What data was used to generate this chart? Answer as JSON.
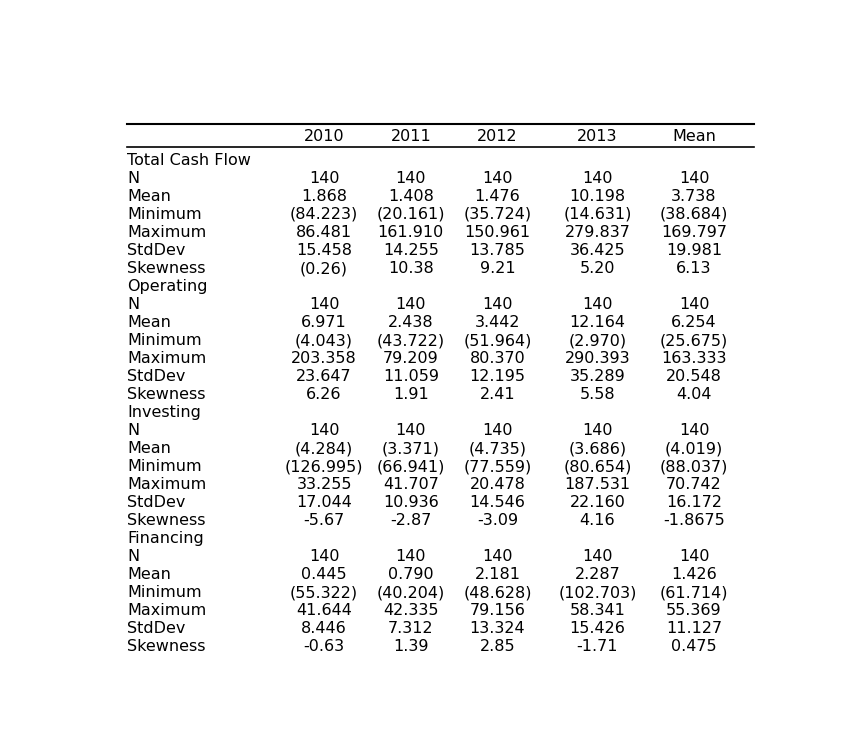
{
  "sections": [
    {
      "header": "Total Cash Flow",
      "rows": [
        [
          "N",
          "140",
          "140",
          "140",
          "140",
          "140"
        ],
        [
          "Mean",
          "1.868",
          "1.408",
          "1.476",
          "10.198",
          "3.738"
        ],
        [
          "Minimum",
          "(84.223)",
          "(20.161)",
          "(35.724)",
          "(14.631)",
          "(38.684)"
        ],
        [
          "Maximum",
          "86.481",
          "161.910",
          "150.961",
          "279.837",
          "169.797"
        ],
        [
          "StdDev",
          "15.458",
          "14.255",
          "13.785",
          "36.425",
          "19.981"
        ],
        [
          "Skewness",
          "(0.26)",
          "10.38",
          "9.21",
          "5.20",
          "6.13"
        ]
      ]
    },
    {
      "header": "Operating",
      "rows": [
        [
          "N",
          "140",
          "140",
          "140",
          "140",
          "140"
        ],
        [
          "Mean",
          "6.971",
          "2.438",
          "3.442",
          "12.164",
          "6.254"
        ],
        [
          "Minimum",
          "(4.043)",
          "(43.722)",
          "(51.964)",
          "(2.970)",
          "(25.675)"
        ],
        [
          "Maximum",
          "203.358",
          "79.209",
          "80.370",
          "290.393",
          "163.333"
        ],
        [
          "StdDev",
          "23.647",
          "11.059",
          "12.195",
          "35.289",
          "20.548"
        ],
        [
          "Skewness",
          "6.26",
          "1.91",
          "2.41",
          "5.58",
          "4.04"
        ]
      ]
    },
    {
      "header": "Investing",
      "rows": [
        [
          "N",
          "140",
          "140",
          "140",
          "140",
          "140"
        ],
        [
          "Mean",
          "(4.284)",
          "(3.371)",
          "(4.735)",
          "(3.686)",
          "(4.019)"
        ],
        [
          "Minimum",
          "(126.995)",
          "(66.941)",
          "(77.559)",
          "(80.654)",
          "(88.037)"
        ],
        [
          "Maximum",
          "33.255",
          "41.707",
          "20.478",
          "187.531",
          "70.742"
        ],
        [
          "StdDev",
          "17.044",
          "10.936",
          "14.546",
          "22.160",
          "16.172"
        ],
        [
          "Skewness",
          "-5.67",
          "-2.87",
          "-3.09",
          "4.16",
          "-1.8675"
        ]
      ]
    },
    {
      "header": "Financing",
      "rows": [
        [
          "N",
          "140",
          "140",
          "140",
          "140",
          "140"
        ],
        [
          "Mean",
          "0.445",
          "0.790",
          "2.181",
          "2.287",
          "1.426"
        ],
        [
          "Minimum",
          "(55.322)",
          "(40.204)",
          "(48.628)",
          "(102.703)",
          "(61.714)"
        ],
        [
          "Maximum",
          "41.644",
          "42.335",
          "79.156",
          "58.341",
          "55.369"
        ],
        [
          "StdDev",
          "8.446",
          "7.312",
          "13.324",
          "15.426",
          "11.127"
        ],
        [
          "Skewness",
          "-0.63",
          "1.39",
          "2.85",
          "-1.71",
          "0.475"
        ]
      ]
    }
  ],
  "header_row": [
    "",
    "2010",
    "2011",
    "2012",
    "2013",
    "Mean"
  ],
  "background_color": "#ffffff",
  "font_size": 11.5,
  "font_family": "DejaVu Sans"
}
